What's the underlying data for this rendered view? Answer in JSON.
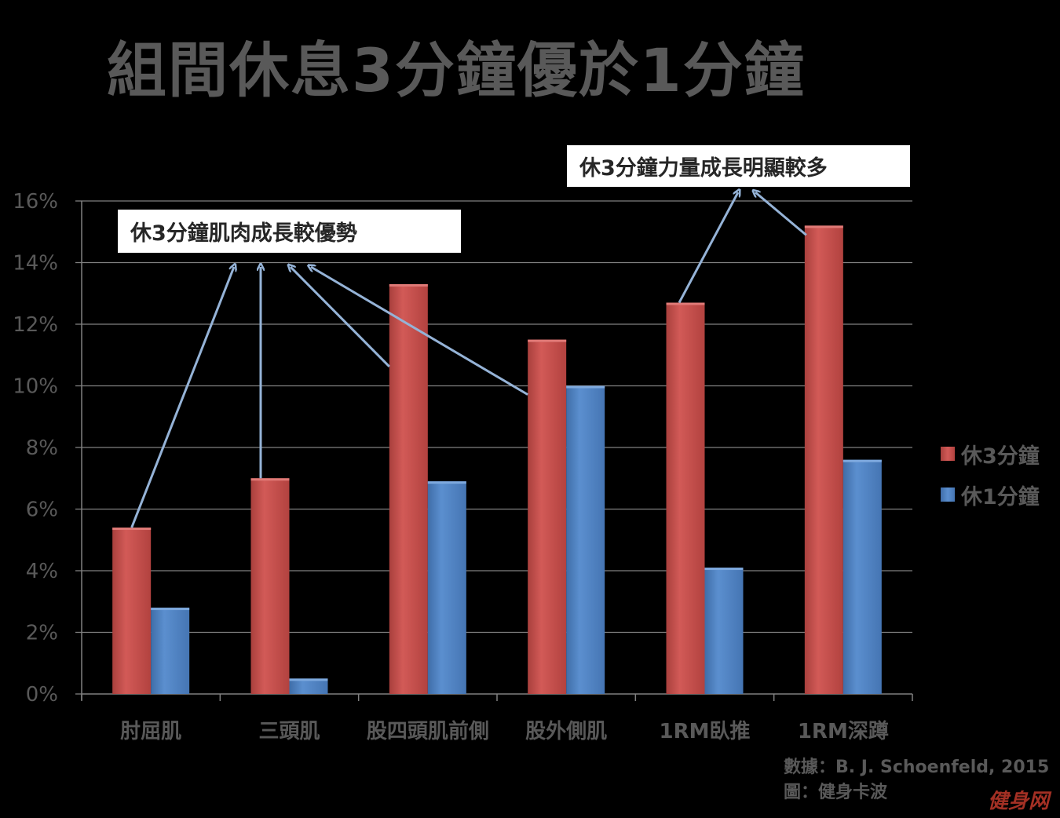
{
  "title": "組間休息3分鐘優於1分鐘",
  "callouts": {
    "left": "休3分鐘肌肉成長較優勢",
    "right": "休3分鐘力量成長明顯較多"
  },
  "legend": [
    {
      "label": "休3分鐘",
      "color": "#c0504d"
    },
    {
      "label": "休1分鐘",
      "color": "#4f81bd"
    }
  ],
  "source": {
    "data_line": "數據：B. J. Schoenfeld, 2015",
    "figure_line": "圖：健身卡波"
  },
  "watermark": "健身网",
  "colors": {
    "red_series": "#c0504d",
    "blue_series": "#4f81bd",
    "grid": "#808080",
    "axis_text": "#595959",
    "arrow": "#95b3d7"
  },
  "chart_data": {
    "type": "bar",
    "categories": [
      "肘屈肌",
      "三頭肌",
      "股四頭肌前側",
      "股外側肌",
      "1RM臥推",
      "1RM深蹲"
    ],
    "series": [
      {
        "name": "休3分鐘",
        "values": [
          5.4,
          7.0,
          13.3,
          11.5,
          12.7,
          15.2
        ]
      },
      {
        "name": "休1分鐘",
        "values": [
          2.8,
          0.5,
          6.9,
          10.0,
          4.1,
          7.6
        ]
      }
    ],
    "y_ticks": [
      "0%",
      "2%",
      "4%",
      "6%",
      "8%",
      "10%",
      "12%",
      "14%",
      "16%"
    ],
    "ylim": [
      0,
      16
    ],
    "y_unit": "%",
    "grid": true,
    "legend_position": "right"
  }
}
